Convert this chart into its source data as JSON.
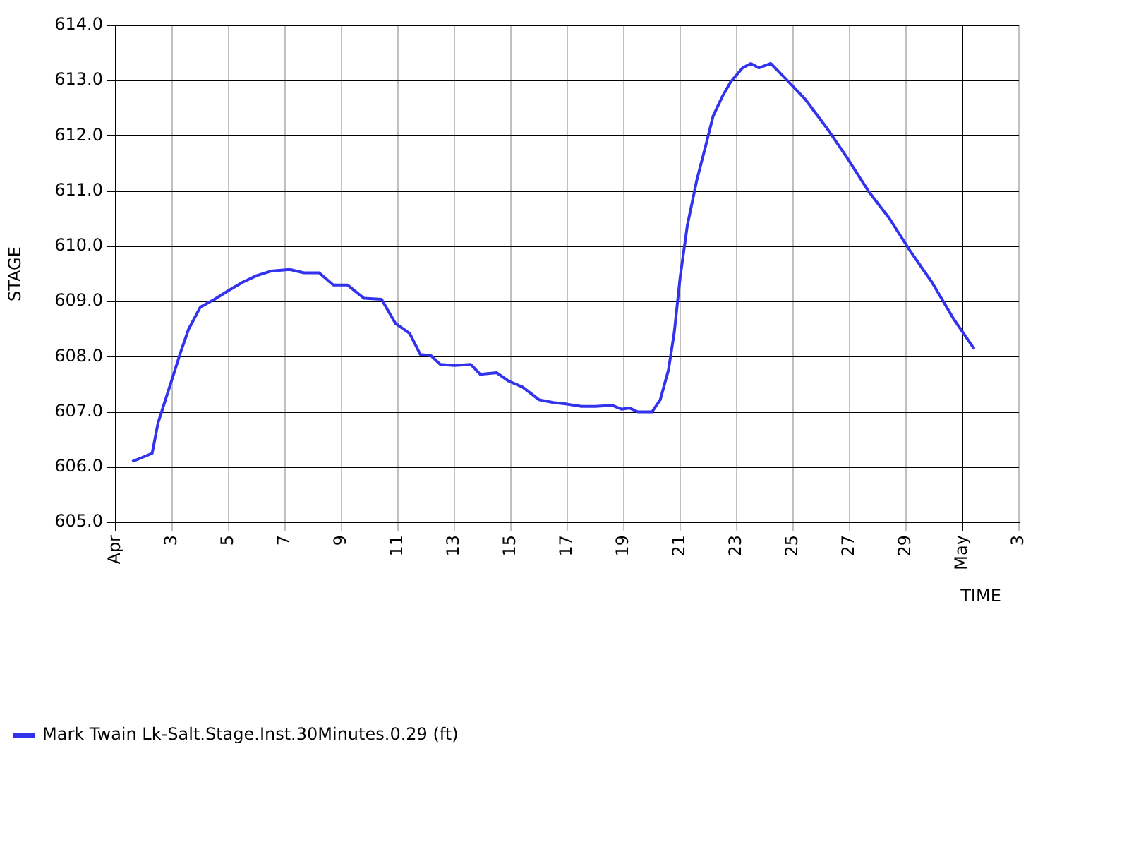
{
  "chart_data": {
    "type": "line",
    "xlabel": "TIME",
    "ylabel": "STAGE",
    "legend": "bottom",
    "grid": true,
    "marker": "none",
    "line_style": "solid",
    "xlim": [
      "--04-01",
      "--05-03"
    ],
    "xticks": [
      {
        "value": "--04-01",
        "label": "Apr"
      },
      {
        "value": "--04-03",
        "label": "3"
      },
      {
        "value": "--04-05",
        "label": "5"
      },
      {
        "value": "--04-07",
        "label": "7"
      },
      {
        "value": "--04-09",
        "label": "9"
      },
      {
        "value": "--04-11",
        "label": "11"
      },
      {
        "value": "--04-13",
        "label": "13"
      },
      {
        "value": "--04-15",
        "label": "15"
      },
      {
        "value": "--04-17",
        "label": "17"
      },
      {
        "value": "--04-19",
        "label": "19"
      },
      {
        "value": "--04-21",
        "label": "21"
      },
      {
        "value": "--04-23",
        "label": "23"
      },
      {
        "value": "--04-25",
        "label": "25"
      },
      {
        "value": "--04-27",
        "label": "27"
      },
      {
        "value": "--04-29",
        "label": "29"
      },
      {
        "value": "--05-01",
        "label": "May"
      },
      {
        "value": "--05-03",
        "label": "3"
      }
    ],
    "ylim": [
      605,
      614
    ],
    "yticks": [
      {
        "value": 605,
        "label": "605.0"
      },
      {
        "value": 606,
        "label": "606.0"
      },
      {
        "value": 607,
        "label": "607.0"
      },
      {
        "value": 608,
        "label": "608.0"
      },
      {
        "value": 609,
        "label": "609.0"
      },
      {
        "value": 610,
        "label": "610.0"
      },
      {
        "value": 611,
        "label": "611.0"
      },
      {
        "value": 612,
        "label": "612.0"
      },
      {
        "value": 613,
        "label": "613.0"
      },
      {
        "value": 614,
        "label": "614.0"
      }
    ],
    "x": [
      "--04-01T14:00",
      "--04-01T22:00",
      "--04-02T07:00",
      "--04-02T12:00",
      "--04-02T18:00",
      "--04-03T00:00",
      "--04-03T07:00",
      "--04-03T14:00",
      "--04-04T00:00",
      "--04-04T12:00",
      "--04-05T00:00",
      "--04-05T12:00",
      "--04-06T00:00",
      "--04-06T12:00",
      "--04-07T04:00",
      "--04-07T16:00",
      "--04-08T05:00",
      "--04-08T17:00",
      "--04-09T05:00",
      "--04-09T19:00",
      "--04-10T10:00",
      "--04-10T22:00",
      "--04-11T10:00",
      "--04-11T19:00",
      "--04-12T04:00",
      "--04-12T12:00",
      "--04-13T00:00",
      "--04-13T14:00",
      "--04-13T22:00",
      "--04-14T12:00",
      "--04-14T22:00",
      "--04-15T10:00",
      "--04-16T00:00",
      "--04-16T12:00",
      "--04-17T00:00",
      "--04-17T12:00",
      "--04-18T00:00",
      "--04-18T14:00",
      "--04-18T22:00",
      "--04-19T05:00",
      "--04-19T12:00",
      "--04-20T00:00",
      "--04-20T07:00",
      "--04-20T14:00",
      "--04-20T19:00",
      "--04-21T00:00",
      "--04-21T06:00",
      "--04-21T14:00",
      "--04-21T22:00",
      "--04-22T04:00",
      "--04-22T12:00",
      "--04-22T19:00",
      "--04-23T05:00",
      "--04-23T12:00",
      "--04-23T19:00",
      "--04-24T05:00",
      "--04-24T17:00",
      "--04-25T10:00",
      "--04-26T04:00",
      "--04-26T22:00",
      "--04-27T16:00",
      "--04-28T10:00",
      "--04-29T04:00",
      "--04-29T22:00",
      "--04-30T16:00",
      "--05-01T10:00"
    ],
    "series": [
      {
        "name": "Mark Twain Lk-Salt.Stage.Inst.30Minutes.0.29 (ft)",
        "color": "#3333ee",
        "values": [
          606.1,
          606.17,
          606.25,
          606.8,
          607.2,
          607.6,
          608.07,
          608.5,
          608.9,
          609.04,
          609.2,
          609.35,
          609.47,
          609.55,
          609.58,
          609.52,
          609.52,
          609.3,
          609.3,
          609.06,
          609.04,
          608.6,
          608.42,
          608.04,
          608.02,
          607.86,
          607.84,
          607.86,
          607.68,
          607.71,
          607.56,
          607.45,
          607.22,
          607.17,
          607.14,
          607.1,
          607.1,
          607.12,
          607.05,
          607.07,
          607.0,
          607.0,
          607.22,
          607.76,
          608.45,
          609.45,
          610.37,
          611.19,
          611.85,
          612.36,
          612.72,
          612.98,
          613.23,
          613.31,
          613.23,
          613.31,
          613.05,
          612.67,
          612.16,
          611.6,
          611.0,
          610.5,
          609.9,
          609.35,
          608.7,
          608.14
        ]
      }
    ]
  }
}
